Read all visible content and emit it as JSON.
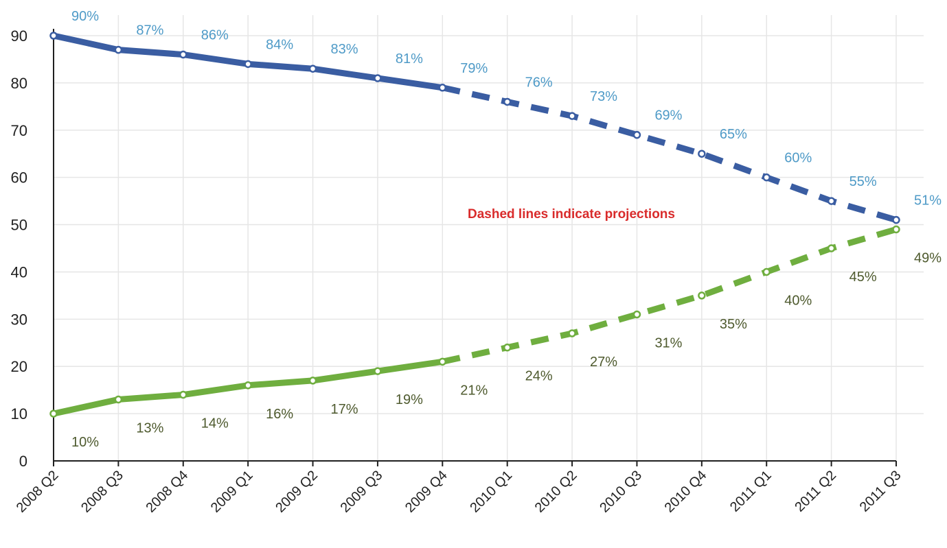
{
  "chart_data": {
    "type": "line",
    "title": "",
    "xlabel": "",
    "ylabel": "",
    "categories": [
      "2008 Q2",
      "2008 Q3",
      "2008 Q4",
      "2009 Q1",
      "2009 Q2",
      "2009 Q3",
      "2009 Q4",
      "2010 Q1",
      "2010 Q2",
      "2010 Q3",
      "2010 Q4",
      "2011 Q1",
      "2011 Q2",
      "2011 Q3"
    ],
    "ylim": [
      0,
      90
    ],
    "yticks": [
      0,
      10,
      20,
      30,
      40,
      50,
      60,
      70,
      80,
      90
    ],
    "grid": true,
    "projection_start_category": "2009 Q4",
    "annotation": "Dashed lines indicate projections",
    "series": [
      {
        "values": [
          90,
          87,
          86,
          84,
          83,
          81,
          79,
          76,
          73,
          69,
          65,
          60,
          55,
          51
        ],
        "labels": [
          "90%",
          "87%",
          "86%",
          "84%",
          "83%",
          "81%",
          "79%",
          "76%",
          "73%",
          "69%",
          "65%",
          "60%",
          "55%",
          "51%"
        ],
        "color": "#3a5da2",
        "label_color": "#4e9ac7",
        "label_position": "above"
      },
      {
        "values": [
          10,
          13,
          14,
          16,
          17,
          19,
          21,
          24,
          27,
          31,
          35,
          40,
          45,
          49
        ],
        "labels": [
          "10%",
          "13%",
          "14%",
          "16%",
          "17%",
          "19%",
          "21%",
          "24%",
          "27%",
          "31%",
          "35%",
          "40%",
          "45%",
          "49%"
        ],
        "color": "#6fae3f",
        "label_color": "#4e5a2e",
        "label_position": "below"
      }
    ],
    "colors": {
      "annotation": "#d92b2b",
      "axis": "#1f1f1f",
      "grid": "#e6e6e6"
    }
  }
}
